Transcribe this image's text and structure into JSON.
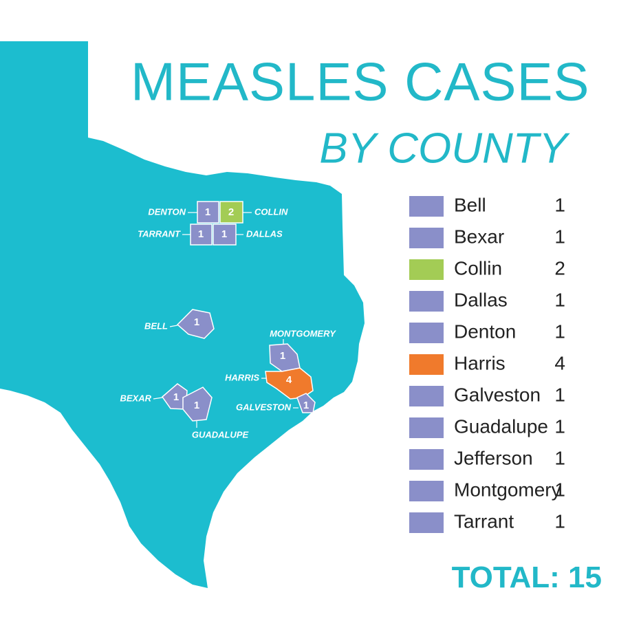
{
  "title": "MEASLES CASES",
  "subtitle": "BY COUNTY",
  "map_color": "#1cbdcf",
  "legend": [
    {
      "name": "Bell",
      "count": 1,
      "color": "#8a8fc9"
    },
    {
      "name": "Bexar",
      "count": 1,
      "color": "#8a8fc9"
    },
    {
      "name": "Collin",
      "count": 2,
      "color": "#a3cc55"
    },
    {
      "name": "Dallas",
      "count": 1,
      "color": "#8a8fc9"
    },
    {
      "name": "Denton",
      "count": 1,
      "color": "#8a8fc9"
    },
    {
      "name": "Harris",
      "count": 4,
      "color": "#f07a2c"
    },
    {
      "name": "Galveston",
      "count": 1,
      "color": "#8a8fc9"
    },
    {
      "name": "Guadalupe",
      "count": 1,
      "color": "#8a8fc9"
    },
    {
      "name": "Jefferson",
      "count": 1,
      "color": "#8a8fc9"
    },
    {
      "name": "Montgomery",
      "count": 1,
      "color": "#8a8fc9"
    },
    {
      "name": "Tarrant",
      "count": 1,
      "color": "#8a8fc9"
    }
  ],
  "map_counties": [
    {
      "name": "DENTON",
      "count": 1,
      "color": "#8a8fc9"
    },
    {
      "name": "COLLIN",
      "count": 2,
      "color": "#a3cc55"
    },
    {
      "name": "TARRANT",
      "count": 1,
      "color": "#8a8fc9"
    },
    {
      "name": "DALLAS",
      "count": 1,
      "color": "#8a8fc9"
    },
    {
      "name": "BELL",
      "count": 1,
      "color": "#8a8fc9"
    },
    {
      "name": "MONTGOMERY",
      "count": 1,
      "color": "#8a8fc9"
    },
    {
      "name": "HARRIS",
      "count": 4,
      "color": "#f07a2c"
    },
    {
      "name": "GALVESTON",
      "count": 1,
      "color": "#8a8fc9"
    },
    {
      "name": "BEXAR",
      "count": 1,
      "color": "#8a8fc9"
    },
    {
      "name": "GUADALUPE",
      "count": 1,
      "color": "#8a8fc9"
    }
  ],
  "total": {
    "label": "TOTAL:",
    "value": 15
  }
}
